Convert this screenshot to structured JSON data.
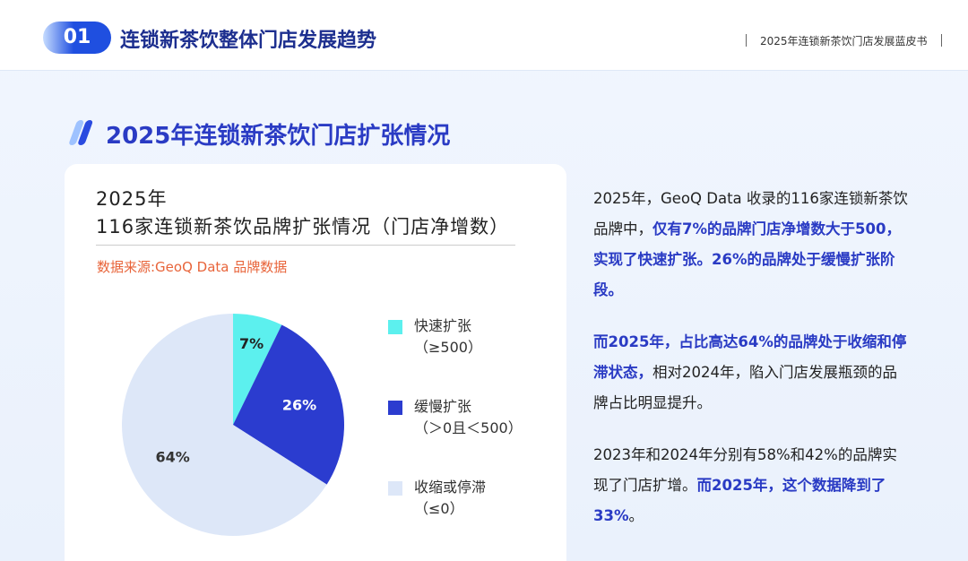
{
  "header": {
    "number": "01",
    "title": "连锁新茶饮整体门店发展趋势",
    "report": "2025年连锁新茶饮门店发展蓝皮书"
  },
  "section_title": "2025年连锁新茶饮门店扩张情况",
  "panel": {
    "title_lines": [
      "2025年",
      "116家连锁新茶饮品牌扩张情况（门店净增数）"
    ],
    "source": "数据来源:GeoQ Data 品牌数据"
  },
  "chart_data": {
    "type": "pie",
    "categories": [
      "快速扩张",
      "缓慢扩张",
      "收缩或停滞"
    ],
    "category_ranges": [
      "（≥500）",
      "（＞0且＜500）",
      "（≤0）"
    ],
    "values": [
      7,
      26,
      64
    ],
    "value_labels": [
      "7%",
      "26%",
      "64%"
    ],
    "colors": [
      "#5cf0ee",
      "#2b3ccf",
      "#dde7f8"
    ],
    "label_colors": [
      "#222222",
      "#ffffff",
      "#333333"
    ]
  },
  "paragraphs": [
    [
      {
        "text": "2025年，GeoQ Data 收录的116家连锁新茶饮品牌中，",
        "strong": false
      },
      {
        "text": "仅有7%的品牌门店净增数大于500，实现了快速扩张。26%的品牌处于缓慢扩张阶段。",
        "strong": true
      }
    ],
    [
      {
        "text": "而2025年，占比高达64%的品牌处于收缩和停滞状态，",
        "strong": true
      },
      {
        "text": "相对2024年，陷入门店发展瓶颈的品牌占比明显提升。",
        "strong": false
      }
    ],
    [
      {
        "text": "2023年和2024年分别有58%和42%的品牌实现了门店扩增。",
        "strong": false
      },
      {
        "text": "而2025年，这个数据降到了33%",
        "strong": true
      },
      {
        "text": "。",
        "strong": false
      }
    ]
  ]
}
